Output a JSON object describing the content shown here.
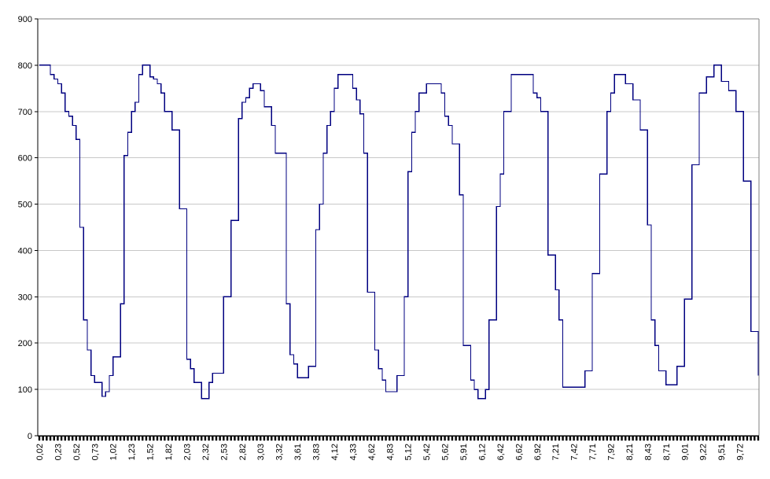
{
  "figure": {
    "title": "",
    "legend": null,
    "background": "#ffffff"
  },
  "chart_data": {
    "type": "line",
    "render": "step-after",
    "title": "",
    "xlabel": "",
    "ylabel": "",
    "grid": true,
    "legend_position": "none",
    "series_name": "",
    "series_color": "#000080",
    "gridline_color": "#c8c8c8",
    "border_color": "#808080",
    "axis_color": "#000000",
    "ylim": [
      0,
      900
    ],
    "y_ticks": [
      "0",
      "100",
      "200",
      "300",
      "400",
      "500",
      "600",
      "700",
      "800",
      "900"
    ],
    "x_label_interval": 5,
    "x_labels": [
      "0,02",
      "0,23",
      "0,52",
      "0,73",
      "1,02",
      "1,23",
      "1,52",
      "1,82",
      "2,03",
      "2,32",
      "2,53",
      "2,82",
      "3,03",
      "3,32",
      "3,61",
      "3,83",
      "4,12",
      "4,33",
      "4,62",
      "4,83",
      "5,12",
      "5,42",
      "5,62",
      "5,91",
      "6,12",
      "6,42",
      "6,62",
      "6,92",
      "7,21",
      "7,42",
      "7,71",
      "7,92",
      "8,21",
      "8,43",
      "8,71",
      "9,01",
      "9,22",
      "9,51",
      "9,72"
    ],
    "values": [
      800,
      800,
      800,
      780,
      770,
      760,
      740,
      700,
      690,
      670,
      640,
      450,
      250,
      185,
      130,
      115,
      115,
      85,
      95,
      130,
      170,
      170,
      285,
      605,
      655,
      700,
      720,
      780,
      800,
      800,
      775,
      770,
      760,
      740,
      700,
      700,
      660,
      660,
      490,
      490,
      165,
      145,
      115,
      115,
      80,
      80,
      115,
      135,
      135,
      135,
      300,
      300,
      465,
      465,
      685,
      720,
      730,
      750,
      760,
      760,
      745,
      710,
      710,
      670,
      610,
      610,
      610,
      285,
      175,
      155,
      125,
      125,
      125,
      150,
      150,
      445,
      500,
      610,
      670,
      700,
      750,
      780,
      780,
      780,
      780,
      750,
      725,
      695,
      610,
      310,
      310,
      185,
      145,
      120,
      95,
      95,
      95,
      130,
      130,
      300,
      570,
      655,
      700,
      740,
      740,
      760,
      760,
      760,
      760,
      740,
      690,
      670,
      630,
      630,
      520,
      195,
      195,
      120,
      100,
      80,
      80,
      100,
      250,
      250,
      495,
      565,
      700,
      700,
      780,
      780,
      780,
      780,
      780,
      780,
      740,
      730,
      700,
      700,
      390,
      390,
      315,
      250,
      105,
      105,
      105,
      105,
      105,
      105,
      140,
      140,
      350,
      350,
      565,
      565,
      700,
      740,
      780,
      780,
      780,
      760,
      760,
      725,
      725,
      660,
      660,
      455,
      250,
      195,
      140,
      140,
      110,
      110,
      110,
      150,
      150,
      295,
      295,
      585,
      585,
      740,
      740,
      775,
      775,
      800,
      800,
      765,
      765,
      745,
      745,
      700,
      700,
      550,
      550,
      225,
      225,
      130
    ]
  }
}
